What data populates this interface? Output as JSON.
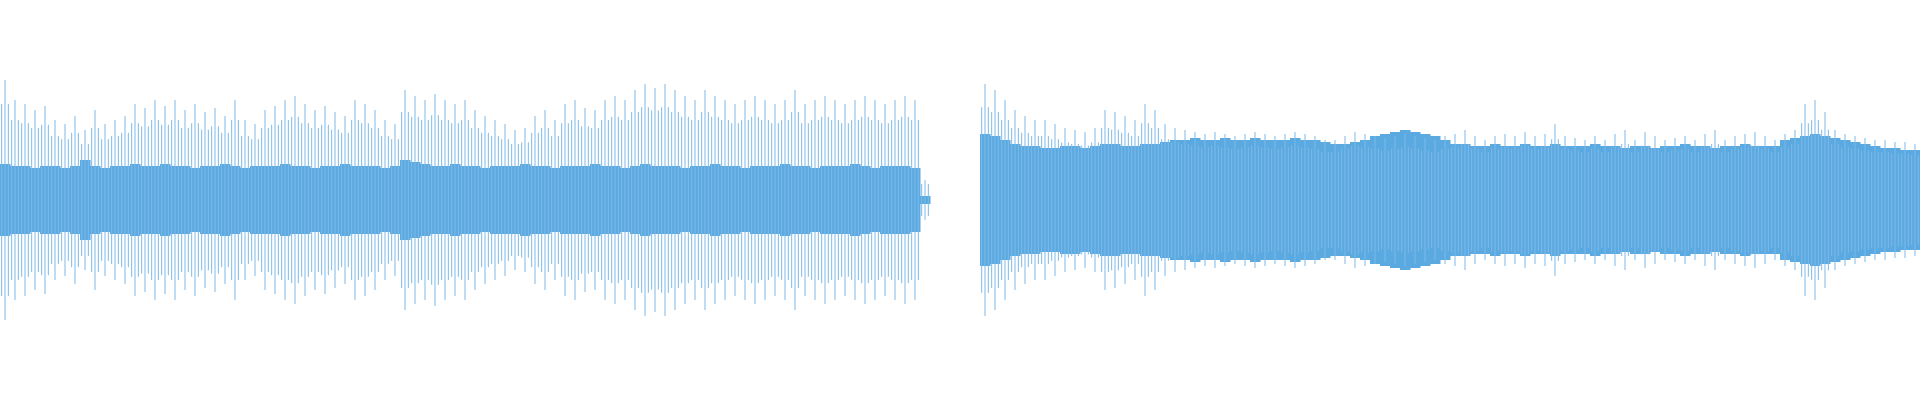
{
  "chart_data": {
    "type": "waveform",
    "color": "#7db9e8",
    "body_color": "#5aa9e0",
    "ylim": [
      -1,
      1
    ],
    "values": [
      0.6,
      0.5,
      0.48,
      0.45,
      0.47,
      0.4,
      0.38,
      0.42,
      0.35,
      0.45,
      0.38,
      0.4,
      0.42,
      0.48,
      0.46,
      0.5,
      0.47,
      0.5,
      0.45,
      0.48,
      0.44,
      0.46,
      0.42,
      0.5,
      0.4,
      0.38,
      0.45,
      0.47,
      0.5,
      0.52,
      0.48,
      0.45,
      0.47,
      0.44,
      0.42,
      0.5,
      0.48,
      0.45,
      0.4,
      0.38,
      0.55,
      0.52,
      0.5,
      0.53,
      0.5,
      0.48,
      0.5,
      0.45,
      0.42,
      0.4,
      0.38,
      0.35,
      0.36,
      0.42,
      0.45,
      0.4,
      0.48,
      0.5,
      0.46,
      0.45,
      0.5,
      0.52,
      0.5,
      0.55,
      0.58,
      0.56,
      0.58,
      0.55,
      0.52,
      0.5,
      0.55,
      0.52,
      0.5,
      0.48,
      0.5,
      0.52,
      0.5,
      0.48,
      0.5,
      0.55,
      0.48,
      0.5,
      0.52,
      0.5,
      0.48,
      0.5,
      0.52,
      0.5,
      0.48,
      0.5,
      0.52,
      0.5,
      0.1,
      null,
      null,
      null,
      null,
      null,
      0.58,
      0.55,
      0.5,
      0.45,
      0.42,
      0.4,
      0.4,
      0.38,
      0.36,
      0.35,
      0.34,
      0.36,
      0.45,
      0.44,
      0.42,
      0.4,
      0.48,
      0.45,
      0.38,
      0.36,
      0.35,
      0.34,
      0.33,
      0.34,
      0.33,
      0.32,
      0.33,
      0.34,
      0.33,
      0.32,
      0.33,
      0.34,
      0.33,
      0.32,
      0.3,
      0.3,
      0.32,
      0.34,
      0.33,
      0.32,
      0.31,
      0.32,
      0.33,
      0.32,
      0.31,
      0.3,
      0.32,
      0.33,
      0.35,
      0.32,
      0.3,
      0.32,
      0.33,
      0.32,
      0.34,
      0.32,
      0.33,
      0.38,
      0.32,
      0.31,
      0.3,
      0.32,
      0.3,
      0.33,
      0.35,
      0.3,
      0.34,
      0.32,
      0.3,
      0.31,
      0.32,
      0.3,
      0.33,
      0.35,
      0.3,
      0.32,
      0.33,
      0.34,
      0.32,
      0.3,
      0.33,
      0.35,
      0.48,
      0.5,
      0.44,
      0.35,
      0.33,
      0.32,
      0.31,
      0.3,
      0.3,
      0.29,
      0.29,
      0.28
    ],
    "body_values": [
      0.18,
      0.17,
      0.17,
      0.16,
      0.17,
      0.17,
      0.16,
      0.17,
      0.2,
      0.17,
      0.16,
      0.17,
      0.17,
      0.18,
      0.17,
      0.17,
      0.18,
      0.17,
      0.17,
      0.16,
      0.17,
      0.17,
      0.18,
      0.17,
      0.16,
      0.17,
      0.17,
      0.17,
      0.18,
      0.17,
      0.17,
      0.16,
      0.17,
      0.17,
      0.18,
      0.17,
      0.17,
      0.17,
      0.16,
      0.17,
      0.2,
      0.19,
      0.18,
      0.17,
      0.17,
      0.18,
      0.17,
      0.17,
      0.16,
      0.17,
      0.17,
      0.17,
      0.18,
      0.17,
      0.17,
      0.16,
      0.17,
      0.17,
      0.17,
      0.18,
      0.17,
      0.17,
      0.16,
      0.17,
      0.18,
      0.17,
      0.17,
      0.17,
      0.16,
      0.17,
      0.17,
      0.18,
      0.17,
      0.17,
      0.16,
      0.17,
      0.17,
      0.17,
      0.18,
      0.17,
      0.17,
      0.16,
      0.17,
      0.17,
      0.17,
      0.18,
      0.17,
      0.16,
      0.17,
      0.17,
      0.17,
      0.16,
      0.02,
      null,
      null,
      null,
      null,
      null,
      0.33,
      0.32,
      0.3,
      0.28,
      0.27,
      0.27,
      0.26,
      0.26,
      0.27,
      0.27,
      0.26,
      0.27,
      0.28,
      0.28,
      0.27,
      0.27,
      0.28,
      0.28,
      0.29,
      0.3,
      0.3,
      0.31,
      0.3,
      0.3,
      0.31,
      0.3,
      0.3,
      0.31,
      0.3,
      0.3,
      0.3,
      0.31,
      0.3,
      0.3,
      0.29,
      0.28,
      0.28,
      0.29,
      0.3,
      0.32,
      0.33,
      0.34,
      0.35,
      0.34,
      0.33,
      0.32,
      0.3,
      0.28,
      0.28,
      0.27,
      0.27,
      0.28,
      0.27,
      0.27,
      0.28,
      0.27,
      0.27,
      0.28,
      0.27,
      0.27,
      0.27,
      0.28,
      0.27,
      0.27,
      0.26,
      0.27,
      0.27,
      0.26,
      0.27,
      0.27,
      0.28,
      0.27,
      0.27,
      0.26,
      0.27,
      0.27,
      0.28,
      0.27,
      0.27,
      0.27,
      0.3,
      0.31,
      0.32,
      0.33,
      0.32,
      0.31,
      0.3,
      0.29,
      0.28,
      0.27,
      0.26,
      0.26,
      0.25,
      0.25
    ]
  }
}
